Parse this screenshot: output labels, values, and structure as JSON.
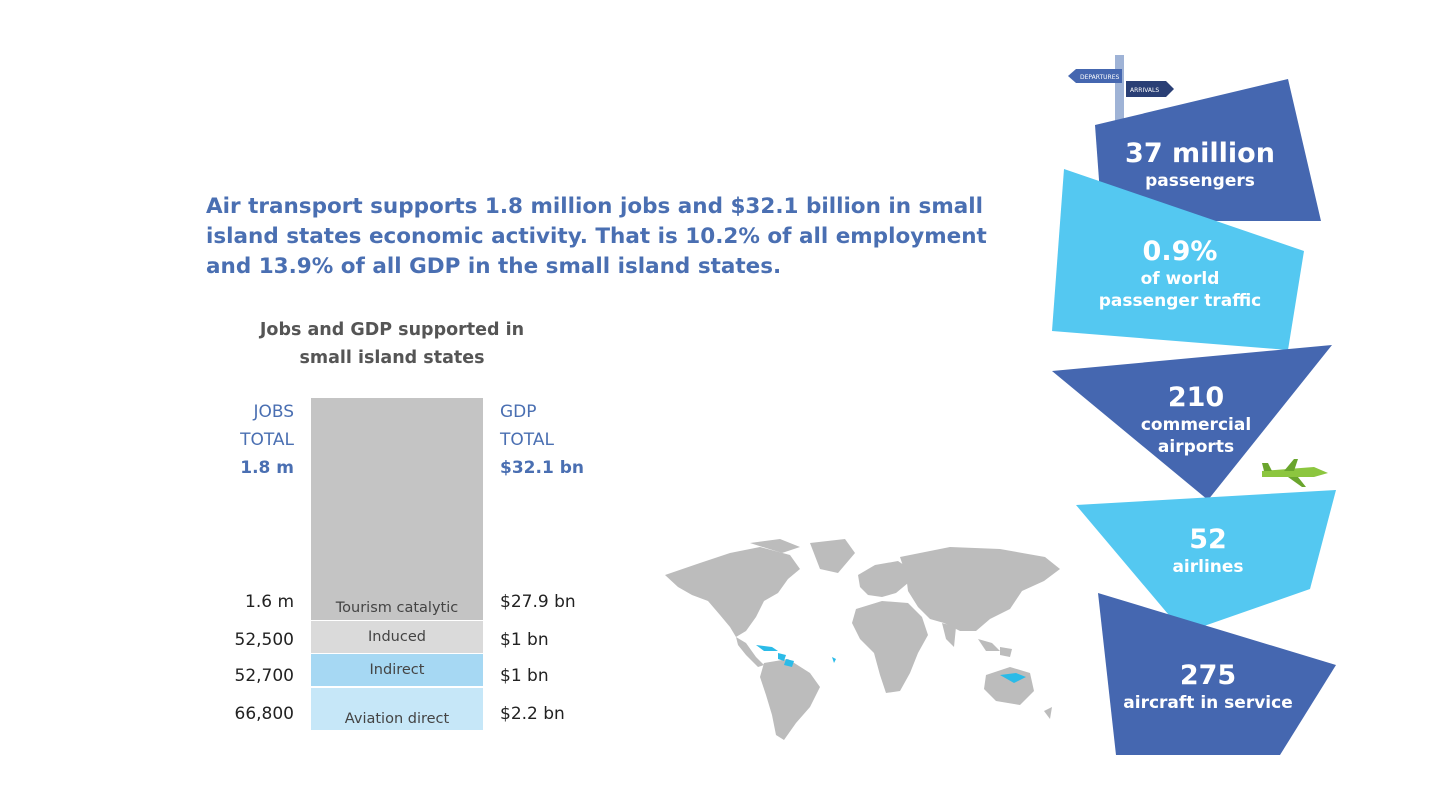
{
  "headline": "Air transport supports 1.8 million jobs and $32.1 billion in small island states economic activity. That is 10.2% of all employment and 13.9% of all GDP in the small island states.",
  "chart_data": {
    "type": "bar",
    "title": "Jobs and GDP supported in small island states",
    "left_header": {
      "line1": "JOBS",
      "line2": "TOTAL",
      "total": "1.8 m"
    },
    "right_header": {
      "line1": "GDP",
      "line2": "TOTAL",
      "total": "$32.1 bn"
    },
    "categories": [
      "Tourism catalytic",
      "Induced",
      "Indirect",
      "Aviation direct"
    ],
    "series": [
      {
        "name": "JOBS",
        "values": [
          1600000,
          52500,
          52700,
          66800
        ],
        "labels": [
          "1.6 m",
          "52,500",
          "52,700",
          "66,800"
        ]
      },
      {
        "name": "GDP",
        "values": [
          27.9,
          1,
          1,
          2.2
        ],
        "labels": [
          "$27.9 bn",
          "$1 bn",
          "$1 bn",
          "$2.2 bn"
        ]
      }
    ],
    "colors": [
      "#c4c4c4",
      "#dadada",
      "#a6d8f3",
      "#c6e7f8"
    ]
  },
  "signpost": {
    "left": "DEPARTURES",
    "right": "ARRIVALS"
  },
  "stats": [
    {
      "number": "37 million",
      "desc": [
        "passengers"
      ],
      "color": "#4567b0"
    },
    {
      "number": "0.9%",
      "desc": [
        "of world",
        "passenger traffic"
      ],
      "color": "#54c8f1"
    },
    {
      "number": "210",
      "desc": [
        "commercial",
        "airports"
      ],
      "color": "#4567b0"
    },
    {
      "number": "52",
      "desc": [
        "airlines"
      ],
      "color": "#54c8f1"
    },
    {
      "number": "275",
      "desc": [
        "aircraft in service"
      ],
      "color": "#4567b0"
    }
  ],
  "map_colors": {
    "land": "#bcbcbc",
    "highlight": "#2bbbe8"
  }
}
